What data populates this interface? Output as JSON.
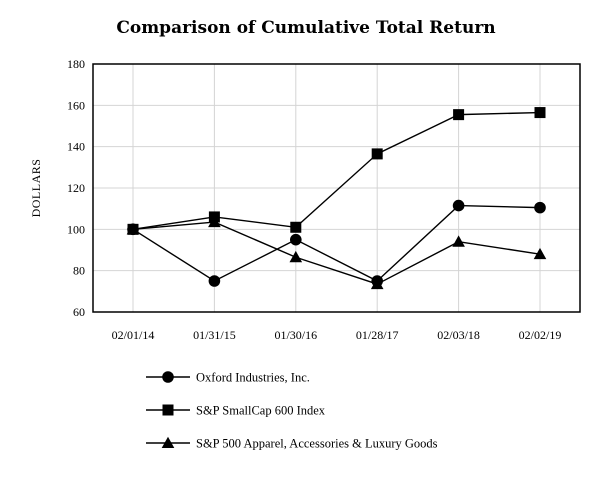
{
  "chart_data": {
    "type": "line",
    "title": "Comparison of Cumulative Total Return",
    "ylabel": "DOLLARS",
    "xlabel": "",
    "ylim": [
      60,
      180
    ],
    "yticks": [
      60,
      80,
      100,
      120,
      140,
      160,
      180
    ],
    "grid": true,
    "legend_position": "bottom",
    "categories": [
      "02/01/14",
      "01/31/15",
      "01/30/16",
      "01/28/17",
      "02/03/18",
      "02/02/19"
    ],
    "series": [
      {
        "name": "Oxford Industries, Inc.",
        "marker": "circle",
        "values": [
          100,
          75,
          95,
          75,
          111.5,
          110.5
        ]
      },
      {
        "name": "S&P SmallCap 600 Index",
        "marker": "square",
        "values": [
          100,
          106,
          101,
          136.5,
          155.5,
          156.5
        ]
      },
      {
        "name": "S&P 500 Apparel, Accessories & Luxury Goods",
        "marker": "triangle",
        "values": [
          100,
          103.5,
          86.5,
          73.5,
          94,
          88
        ]
      }
    ],
    "colors": {
      "line": "#000000",
      "grid": "#d4d4d4"
    }
  }
}
